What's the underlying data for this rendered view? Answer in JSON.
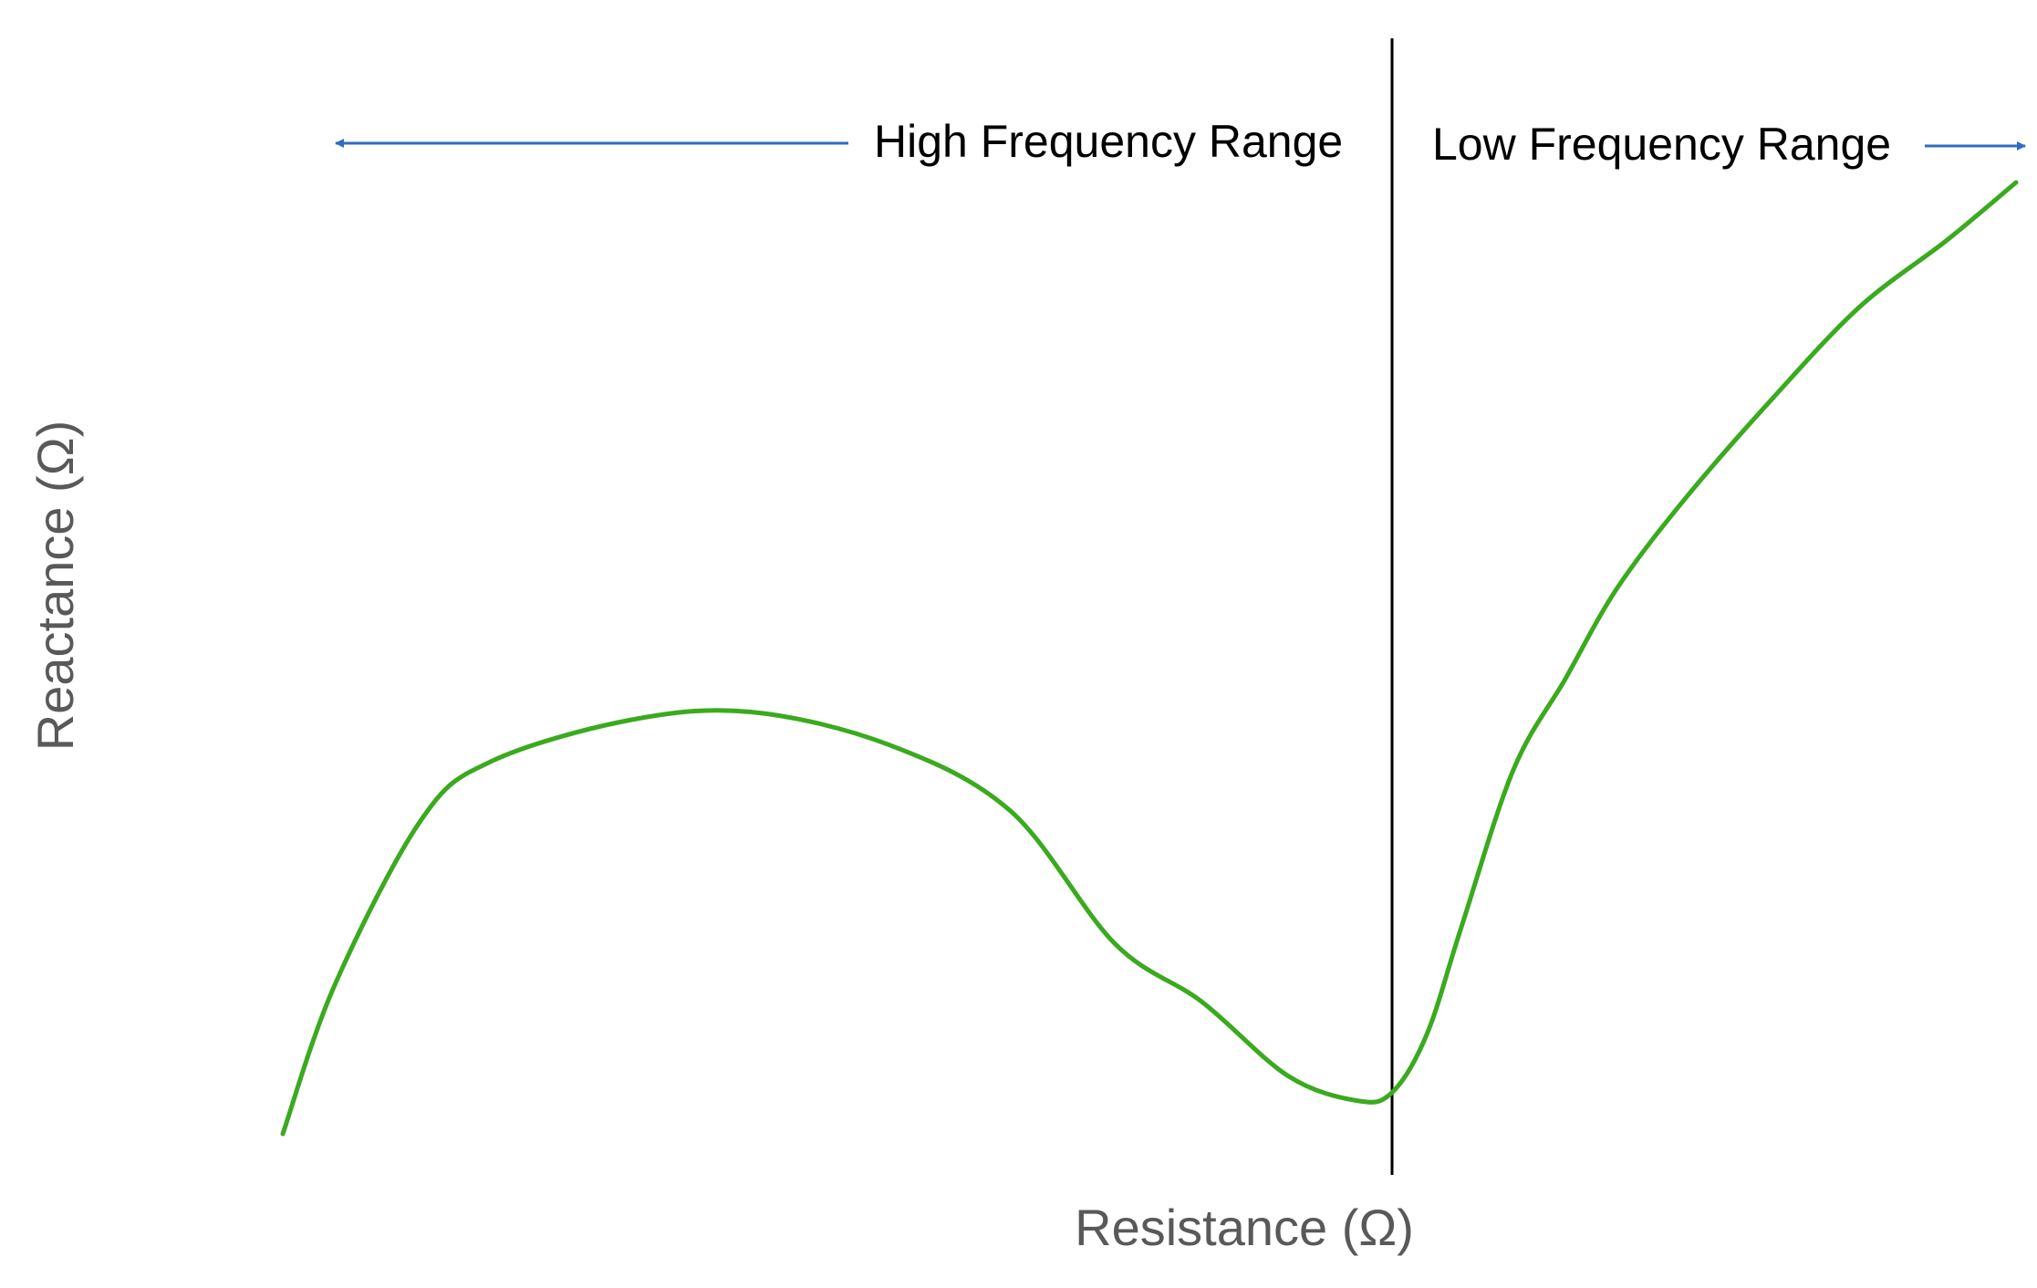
{
  "chart_data": {
    "type": "line",
    "title": "",
    "xlabel": "Resistance (Ω)",
    "ylabel": "Reactance (Ω)",
    "ticks": "none",
    "grid": false,
    "annotations": {
      "high_range": "High Frequency Range",
      "low_range": "Low Frequency Range"
    },
    "series": [
      {
        "name": "",
        "color": "#3aaa1e",
        "x": [
          0.0,
          0.03,
          0.08,
          0.12,
          0.2,
          0.27,
          0.35,
          0.42,
          0.48,
          0.53,
          0.58,
          0.62,
          0.64,
          0.66,
          0.68,
          0.71,
          0.74,
          0.77,
          0.81,
          0.86,
          0.91,
          0.96,
          1.0
        ],
        "y": [
          0.0,
          0.18,
          0.38,
          0.45,
          0.5,
          0.51,
          0.47,
          0.39,
          0.23,
          0.16,
          0.07,
          0.04,
          0.05,
          0.12,
          0.25,
          0.44,
          0.55,
          0.66,
          0.77,
          0.89,
          1.0,
          1.08,
          1.15
        ]
      }
    ],
    "divider_x": 0.64,
    "colors": {
      "curve": "#3aaa1e",
      "arrows": "#2f6cc2",
      "divider": "#000000",
      "axis_label_color": "#595959"
    }
  }
}
